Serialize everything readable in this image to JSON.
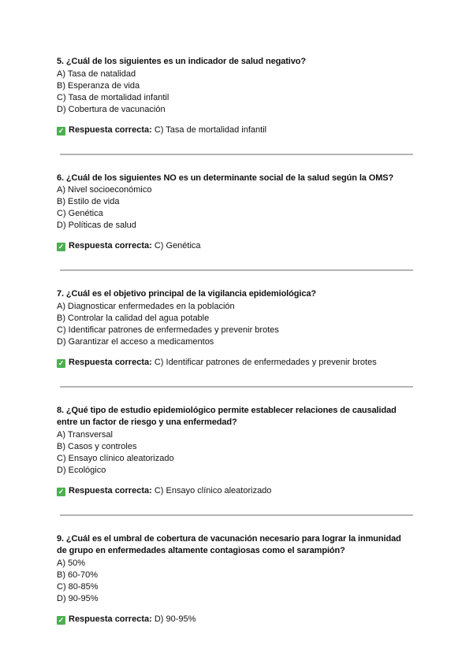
{
  "answer_label": "Respuesta correcta:",
  "check_icon": "white-heavy-check-mark",
  "accent_color": "#4caf50",
  "questions": [
    {
      "title": "5. ¿Cuál de los siguientes es un indicador de salud negativo?",
      "options": [
        "A) Tasa de natalidad",
        "B) Esperanza de vida",
        "C) Tasa de mortalidad infantil",
        "D) Cobertura de vacunación"
      ],
      "answer": "C) Tasa de mortalidad infantil"
    },
    {
      "title": "6. ¿Cuál de los siguientes NO es un determinante social de la salud según la OMS?",
      "options": [
        "A) Nivel socioeconómico",
        "B) Estilo de vida",
        "C) Genética",
        "D) Políticas de salud"
      ],
      "answer": "C) Genética"
    },
    {
      "title": "7. ¿Cuál es el objetivo principal de la vigilancia epidemiológica?",
      "options": [
        "A) Diagnosticar enfermedades en la población",
        "B) Controlar la calidad del agua potable",
        "C) Identificar patrones de enfermedades y prevenir brotes",
        "D) Garantizar el acceso a medicamentos"
      ],
      "answer": "C) Identificar patrones de enfermedades y prevenir brotes"
    },
    {
      "title": "8. ¿Qué tipo de estudio epidemiológico permite establecer relaciones de causalidad entre un factor de riesgo y una enfermedad?",
      "options": [
        "A) Transversal",
        "B) Casos y controles",
        "C) Ensayo clínico aleatorizado",
        "D) Ecológico"
      ],
      "answer": "C) Ensayo clínico aleatorizado"
    },
    {
      "title": "9. ¿Cuál es el umbral de cobertura de vacunación necesario para lograr la inmunidad de grupo en enfermedades altamente contagiosas como el sarampión?",
      "options": [
        "A) 50%",
        "B) 60-70%",
        "C) 80-85%",
        "D) 90-95%"
      ],
      "answer": "D) 90-95%"
    }
  ]
}
